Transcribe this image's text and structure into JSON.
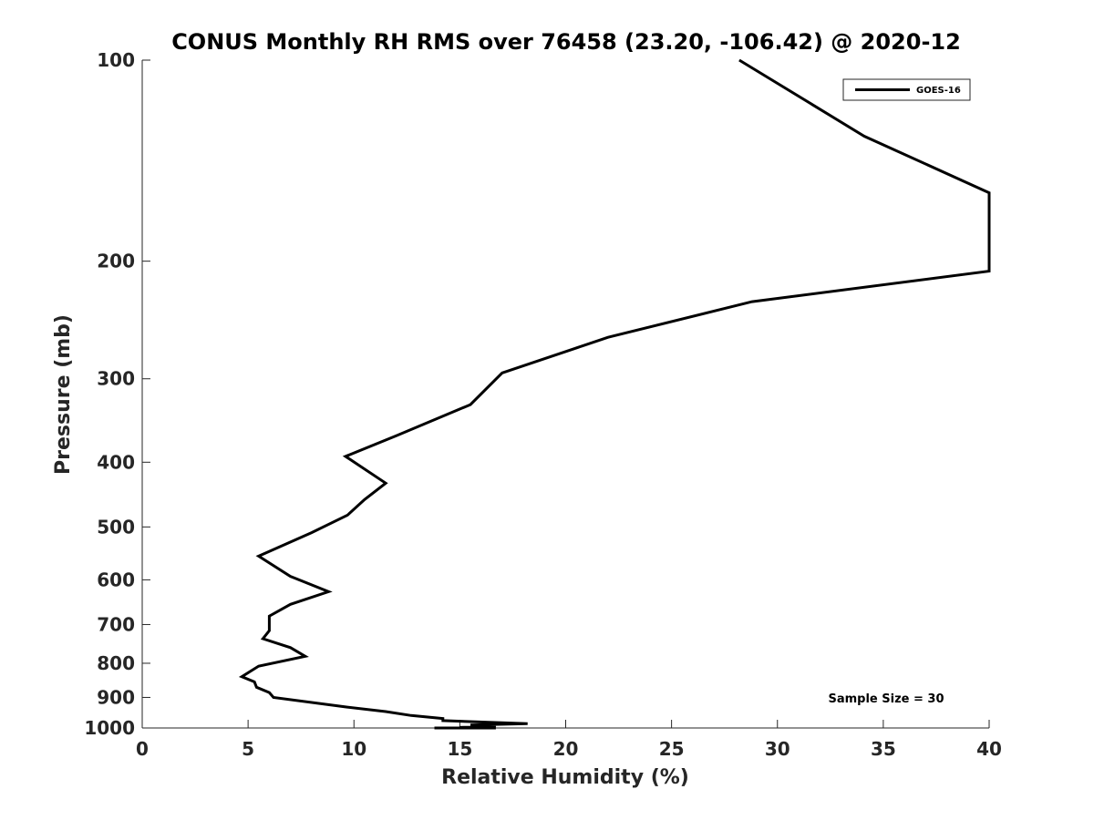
{
  "chart_data": {
    "type": "line",
    "title": "CONUS Monthly RH RMS over 76458 (23.20, -106.42) @ 2020-12",
    "xlabel": "Relative Humidity (%)",
    "ylabel": "Pressure (mb)",
    "xlim": [
      0,
      40
    ],
    "ylim": [
      100,
      1000
    ],
    "yscale": "log",
    "y_reversed": true,
    "xticks": [
      0,
      5,
      10,
      15,
      20,
      25,
      30,
      35,
      40
    ],
    "yticks": [
      100,
      200,
      300,
      400,
      500,
      600,
      700,
      800,
      900,
      1000
    ],
    "grid": false,
    "legend_position": "top-right",
    "annotation": "Sample Size = 30",
    "series": [
      {
        "name": "GOES-16",
        "color": "#000000",
        "points": [
          [
            28.2,
            100
          ],
          [
            34.1,
            130
          ],
          [
            40.0,
            158
          ],
          [
            40.0,
            207
          ],
          [
            28.8,
            230
          ],
          [
            22.0,
            260
          ],
          [
            17.0,
            294
          ],
          [
            15.5,
            328
          ],
          [
            12.0,
            365
          ],
          [
            9.6,
            392
          ],
          [
            11.5,
            430
          ],
          [
            10.5,
            455
          ],
          [
            9.7,
            480
          ],
          [
            8.0,
            510
          ],
          [
            5.5,
            553
          ],
          [
            7.0,
            593
          ],
          [
            8.8,
            625
          ],
          [
            7.0,
            653
          ],
          [
            6.0,
            680
          ],
          [
            6.0,
            715
          ],
          [
            5.7,
            735
          ],
          [
            7.0,
            758
          ],
          [
            7.7,
            781
          ],
          [
            5.5,
            808
          ],
          [
            4.7,
            838
          ],
          [
            5.3,
            853
          ],
          [
            5.4,
            869
          ],
          [
            6.0,
            885
          ],
          [
            6.2,
            900
          ],
          [
            9.6,
            930
          ],
          [
            11.5,
            945
          ],
          [
            12.7,
            958
          ],
          [
            14.2,
            968
          ],
          [
            14.2,
            975
          ],
          [
            18.2,
            985
          ],
          [
            15.5,
            990
          ],
          [
            16.7,
            994
          ],
          [
            15.0,
            998
          ],
          [
            16.7,
            1000
          ],
          [
            14.6,
            1000
          ],
          [
            14.9,
            1000
          ],
          [
            13.8,
            1000
          ],
          [
            15.3,
            1000
          ]
        ]
      }
    ]
  }
}
